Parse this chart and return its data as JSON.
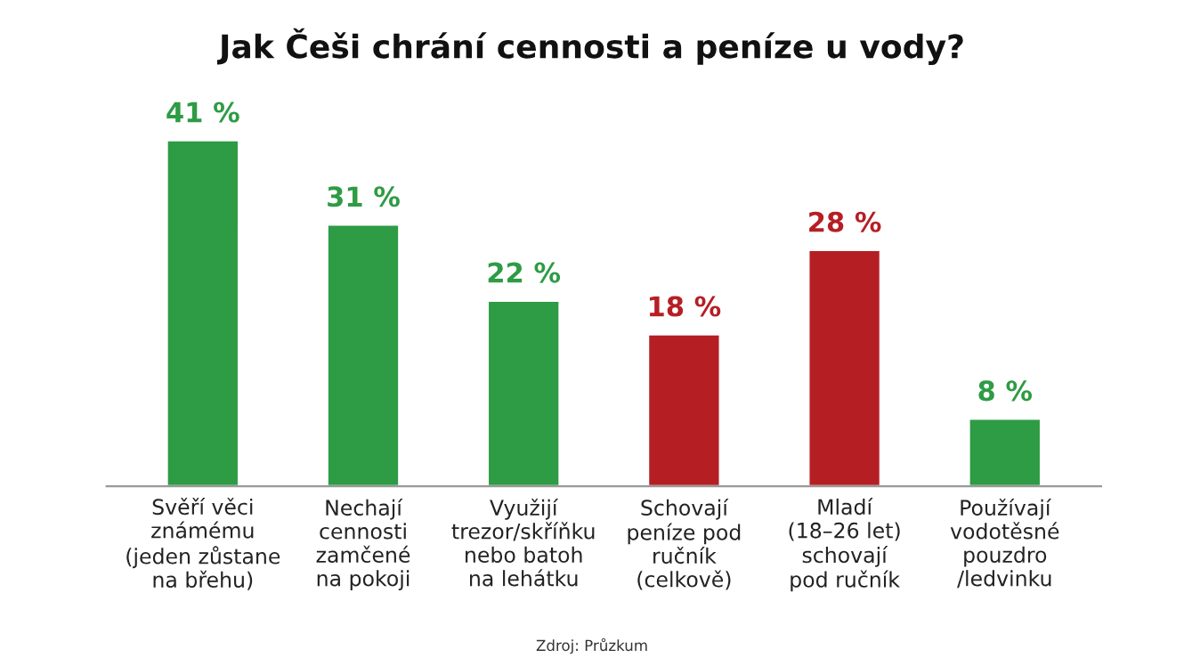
{
  "chart_data": {
    "type": "bar",
    "title": "Jak Češi chrání cennosti a peníze u vody?",
    "categories": [
      "Svěří věci\nznámému\n(jeden zůstane\nna břehu)",
      "Nechají\ncennosti\nzamčené\nna pokoji",
      "Využijí\ntrezor/skříňku\nnebo batoh\nna lehátku",
      "Schovají\npeníze pod\nručník\n(celkově)",
      "Mladí\n(18–26 let)\nschovají\npod ručník",
      "Používají\nvodotěsné\npouzdro\n/ledvinku"
    ],
    "values": [
      41,
      31,
      22,
      18,
      28,
      8
    ],
    "value_labels": [
      "41 %",
      "31 %",
      "22 %",
      "18 %",
      "28 %",
      "8 %"
    ],
    "colors": [
      "#2e9b45",
      "#2e9b45",
      "#2e9b45",
      "#b51f24",
      "#b51f24",
      "#2e9b45"
    ],
    "annotations": [
      "Zdroj: Průzkum"
    ],
    "grid": false,
    "legend": false
  }
}
